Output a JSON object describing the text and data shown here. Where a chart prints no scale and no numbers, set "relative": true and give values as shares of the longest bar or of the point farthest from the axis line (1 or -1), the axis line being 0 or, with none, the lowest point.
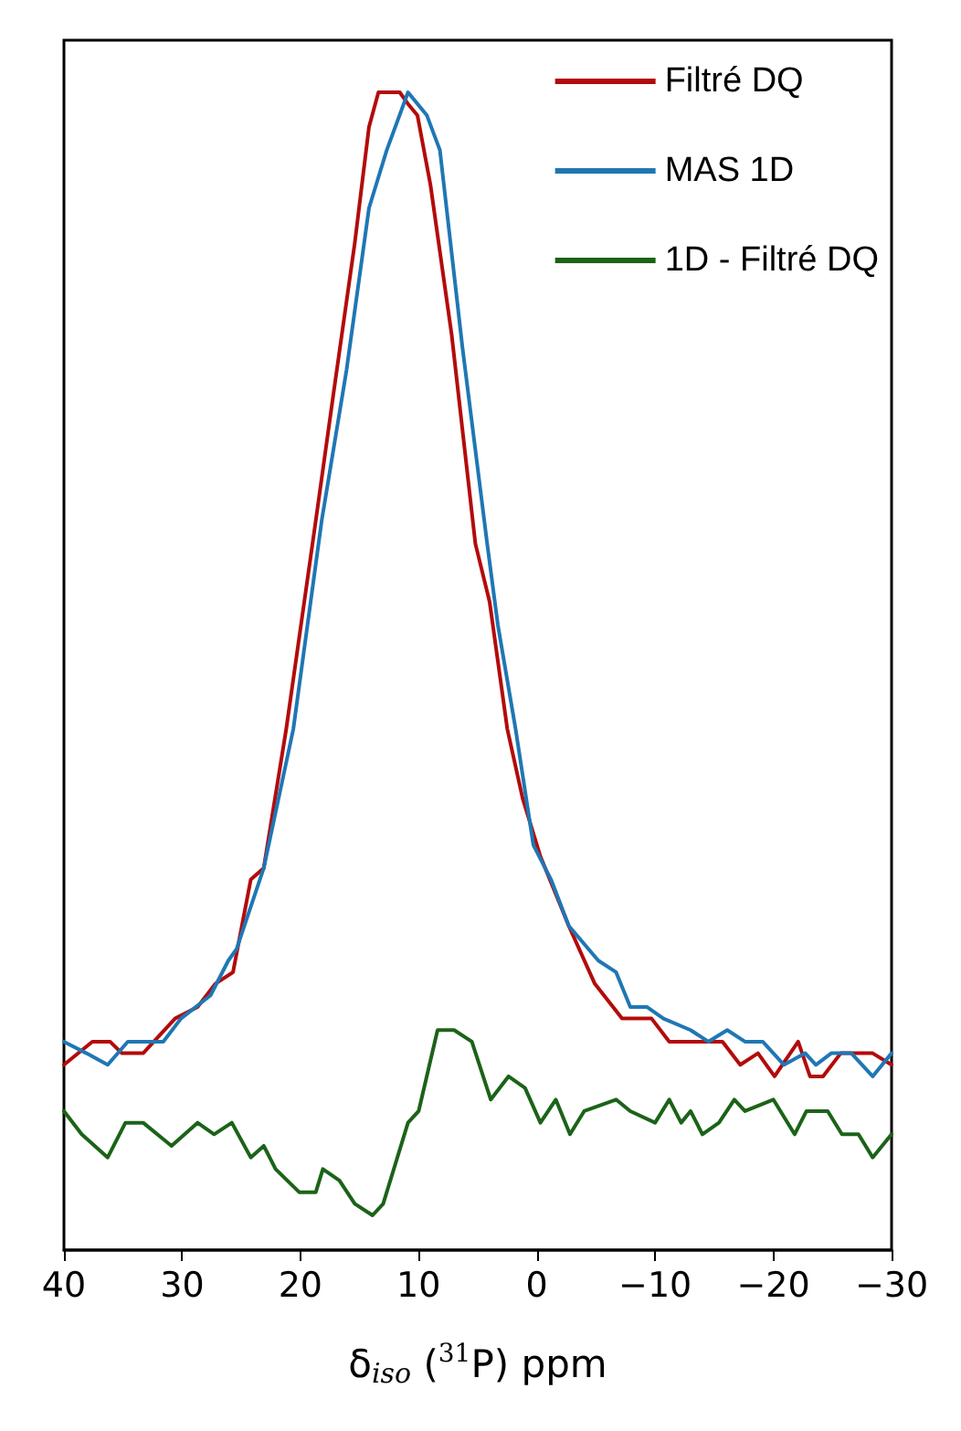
{
  "chart_data": {
    "type": "line",
    "relative": true,
    "xlabel": "δ$_{iso}$ ($^{31}$P) ppm",
    "xlim": [
      40,
      -30
    ],
    "xticks": [
      40,
      30,
      20,
      10,
      0,
      {
        "value": -10,
        "label": "−10"
      },
      {
        "value": -20,
        "label": "−20"
      },
      {
        "value": -30,
        "label": "−30"
      }
    ],
    "grid": false,
    "legend": "top right",
    "marker": "none",
    "line_style": "solid",
    "series": [
      {
        "name": "Filtré DQ",
        "color": "#b30b0b",
        "x": [
          40,
          37.6,
          36.1,
          35.1,
          33.3,
          32.4,
          30.6,
          28.7,
          27.2,
          25.7,
          24.2,
          23.1,
          21.2,
          18.7,
          17.2,
          15.4,
          14.2,
          13.4,
          12.7,
          11.6,
          10.9,
          10.1,
          9.0,
          7.2,
          5.2,
          4.0,
          2.5,
          1.2,
          -0.3,
          -2.7,
          -4.9,
          -7.2,
          -9.7,
          -11.2,
          -12.7,
          -14.2,
          -15.7,
          -17.2,
          -18.7,
          -20.1,
          -22.1,
          -23.1,
          -24.2,
          -25.7,
          -27.2,
          -28.4,
          -30
        ],
        "values": [
          0.16,
          0.18,
          0.18,
          0.17,
          0.17,
          0.18,
          0.2,
          0.21,
          0.23,
          0.24,
          0.32,
          0.33,
          0.45,
          0.63,
          0.74,
          0.87,
          0.97,
          1.0,
          1.0,
          1.0,
          0.99,
          0.98,
          0.92,
          0.79,
          0.61,
          0.56,
          0.45,
          0.39,
          0.34,
          0.28,
          0.23,
          0.2,
          0.2,
          0.18,
          0.18,
          0.18,
          0.18,
          0.16,
          0.17,
          0.15,
          0.18,
          0.15,
          0.15,
          0.17,
          0.17,
          0.17,
          0.16
        ]
      },
      {
        "name": "MAS 1D",
        "color": "#1f77b4",
        "x": [
          40,
          38.1,
          36.3,
          34.6,
          32.5,
          31.6,
          30.1,
          27.6,
          26.1,
          25.4,
          23.1,
          20.6,
          18.2,
          16.1,
          14.2,
          12.7,
          10.9,
          9.3,
          8.2,
          6.3,
          4.2,
          3.3,
          1.8,
          0.3,
          -1.2,
          -2.7,
          -5.2,
          -6.7,
          -7.9,
          -9.3,
          -10.7,
          -13.0,
          -14.5,
          -16.1,
          -17.6,
          -19.1,
          -20.9,
          -22.7,
          -23.6,
          -24.9,
          -26.6,
          -28.4,
          -30
        ],
        "values": [
          0.18,
          0.17,
          0.16,
          0.18,
          0.18,
          0.18,
          0.2,
          0.22,
          0.25,
          0.26,
          0.33,
          0.45,
          0.63,
          0.76,
          0.9,
          0.95,
          1.0,
          0.98,
          0.95,
          0.78,
          0.61,
          0.54,
          0.45,
          0.35,
          0.32,
          0.28,
          0.25,
          0.24,
          0.21,
          0.21,
          0.2,
          0.19,
          0.18,
          0.19,
          0.18,
          0.18,
          0.16,
          0.17,
          0.16,
          0.17,
          0.17,
          0.15,
          0.17
        ]
      },
      {
        "name": "1D - Filtré DQ",
        "color": "#1b6318",
        "x": [
          40,
          38.5,
          36.3,
          34.8,
          33.3,
          30.9,
          28.7,
          27.3,
          25.8,
          24.2,
          23.1,
          22.1,
          20.1,
          18.7,
          18.1,
          16.7,
          15.4,
          13.9,
          13.0,
          10.9,
          10.0,
          8.4,
          7.0,
          5.5,
          3.9,
          2.4,
          1.0,
          -0.3,
          -1.6,
          -2.8,
          -4.0,
          -6.7,
          -7.9,
          -10.0,
          -11.2,
          -12.2,
          -13.0,
          -14.0,
          -15.4,
          -16.7,
          -17.6,
          -20.0,
          -21.8,
          -22.8,
          -24.6,
          -25.8,
          -27.2,
          -28.4,
          -30
        ],
        "values": [
          0.12,
          0.1,
          0.08,
          0.11,
          0.11,
          0.09,
          0.11,
          0.1,
          0.11,
          0.08,
          0.09,
          0.07,
          0.05,
          0.05,
          0.07,
          0.06,
          0.04,
          0.03,
          0.04,
          0.11,
          0.12,
          0.19,
          0.19,
          0.18,
          0.13,
          0.15,
          0.14,
          0.11,
          0.13,
          0.1,
          0.12,
          0.13,
          0.12,
          0.11,
          0.13,
          0.11,
          0.12,
          0.1,
          0.11,
          0.13,
          0.12,
          0.13,
          0.1,
          0.12,
          0.12,
          0.1,
          0.1,
          0.08,
          0.1
        ]
      }
    ]
  }
}
